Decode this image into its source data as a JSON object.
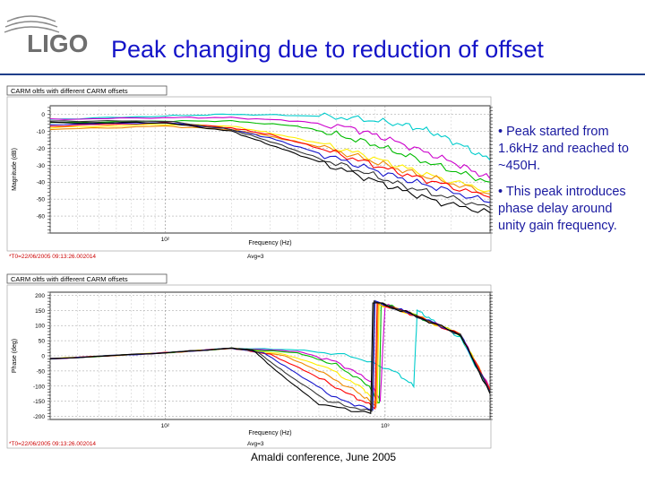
{
  "logo": {
    "text": "LIGO"
  },
  "slide": {
    "title": "Peak changing due to reduction of offset",
    "bullets": [
      "• Peak started from 1.6kHz and reached to ~450H.",
      "• This peak introduces phase delay around unity gain frequency."
    ],
    "footer": "Amaldi conference, June 2005"
  },
  "colors": {
    "title": "#1414c8",
    "bullets": "#1a1aa0",
    "stamp": "#cc0000"
  },
  "chart_data": [
    {
      "type": "line",
      "title": "CARM oltfs with different CARM offsets",
      "ylabel": "Magnitude (dB)",
      "xlabel": "Frequency (Hz)",
      "x_scale": "log",
      "xlim": [
        30,
        3000
      ],
      "ylim": [
        -70,
        5
      ],
      "yticks": [
        0,
        -10,
        -20,
        -30,
        -40,
        -50,
        -60
      ],
      "xtick_labels": [
        {
          "value": 100,
          "text": "10²"
        }
      ],
      "timestamp": "*T0=22/06/2005 09:13:26.002014",
      "avg": "Avg=3",
      "series": [
        {
          "color": "#00cccc",
          "x": [
            30,
            100,
            200,
            500,
            800,
            1200,
            1600,
            2200,
            3000
          ],
          "y": [
            -3,
            -1,
            0,
            -1,
            -3,
            -6,
            -10,
            -18,
            -27
          ]
        },
        {
          "color": "#cc00cc",
          "x": [
            30,
            100,
            200,
            400,
            700,
            1000,
            1500,
            2200,
            3000
          ],
          "y": [
            -3,
            -2,
            -2,
            -4,
            -8,
            -14,
            -22,
            -30,
            -38
          ]
        },
        {
          "color": "#00bb00",
          "x": [
            30,
            100,
            200,
            400,
            600,
            900,
            1300,
            2000,
            3000
          ],
          "y": [
            -5,
            -4,
            -4,
            -7,
            -12,
            -18,
            -25,
            -33,
            -40
          ]
        },
        {
          "color": "#ffee00",
          "x": [
            30,
            100,
            200,
            300,
            500,
            800,
            1200,
            1800,
            3000
          ],
          "y": [
            -8,
            -6,
            -7,
            -11,
            -17,
            -24,
            -31,
            -38,
            -45
          ]
        },
        {
          "color": "#ee8800",
          "x": [
            30,
            100,
            200,
            300,
            500,
            800,
            1200,
            1800,
            3000
          ],
          "y": [
            -9,
            -7,
            -9,
            -13,
            -19,
            -26,
            -33,
            -39,
            -47
          ]
        },
        {
          "color": "#ff0000",
          "x": [
            30,
            100,
            200,
            300,
            500,
            800,
            1200,
            1800,
            3000
          ],
          "y": [
            -7,
            -5,
            -8,
            -12,
            -20,
            -28,
            -35,
            -41,
            -49
          ]
        },
        {
          "color": "#1515cc",
          "x": [
            30,
            100,
            200,
            300,
            500,
            800,
            1200,
            1800,
            3000
          ],
          "y": [
            -6,
            -5,
            -9,
            -14,
            -23,
            -31,
            -38,
            -44,
            -52
          ]
        },
        {
          "color": "#333333",
          "x": [
            30,
            100,
            200,
            300,
            500,
            800,
            1200,
            1800,
            3000
          ],
          "y": [
            -4,
            -4,
            -9,
            -16,
            -26,
            -34,
            -42,
            -48,
            -55
          ]
        },
        {
          "color": "#000000",
          "x": [
            30,
            100,
            200,
            300,
            500,
            800,
            1200,
            1800,
            3000
          ],
          "y": [
            -5,
            -5,
            -10,
            -18,
            -28,
            -37,
            -45,
            -52,
            -58
          ]
        }
      ]
    },
    {
      "type": "line",
      "title": "CARM oltfs with different CARM offsets",
      "ylabel": "Phase (deg)",
      "xlabel": "Frequency (Hz)",
      "x_scale": "log",
      "xlim": [
        30,
        3000
      ],
      "ylim": [
        -210,
        210
      ],
      "yticks": [
        200,
        150,
        100,
        50,
        0,
        -50,
        -100,
        -150,
        -200
      ],
      "xtick_labels": [
        {
          "value": 100,
          "text": "10²"
        },
        {
          "value": 1000,
          "text": "10³"
        }
      ],
      "timestamp": "*T0=22/06/2005 09:13:26.002014",
      "avg": "Avg=3",
      "series": [
        {
          "color": "#00cccc",
          "x": [
            30,
            100,
            200,
            400,
            700,
            1100,
            1350,
            1400,
            1700,
            2200,
            3000
          ],
          "y": [
            -10,
            10,
            25,
            20,
            0,
            -50,
            -100,
            150,
            110,
            60,
            -120
          ]
        },
        {
          "color": "#cc00cc",
          "x": [
            30,
            100,
            200,
            400,
            600,
            850,
            950,
            1000,
            1300,
            2200,
            3000
          ],
          "y": [
            -10,
            10,
            25,
            15,
            -20,
            -80,
            -150,
            170,
            140,
            70,
            -110
          ]
        },
        {
          "color": "#00bb00",
          "x": [
            30,
            100,
            200,
            400,
            600,
            850,
            940,
            960,
            1300,
            2200,
            3000
          ],
          "y": [
            -10,
            10,
            25,
            10,
            -30,
            -100,
            -160,
            175,
            140,
            70,
            -115
          ]
        },
        {
          "color": "#ffee00",
          "x": [
            30,
            100,
            200,
            350,
            550,
            800,
            920,
            940,
            1300,
            2200,
            3000
          ],
          "y": [
            -10,
            10,
            25,
            5,
            -40,
            -110,
            -160,
            170,
            140,
            70,
            -110
          ]
        },
        {
          "color": "#ee8800",
          "x": [
            30,
            100,
            200,
            350,
            500,
            750,
            910,
            930,
            1300,
            2200,
            3000
          ],
          "y": [
            -10,
            10,
            25,
            0,
            -50,
            -120,
            -165,
            172,
            140,
            70,
            -108
          ]
        },
        {
          "color": "#ff0000",
          "x": [
            30,
            100,
            200,
            300,
            450,
            700,
            900,
            920,
            1300,
            2200,
            3000
          ],
          "y": [
            -10,
            10,
            25,
            5,
            -55,
            -130,
            -170,
            175,
            140,
            70,
            -112
          ]
        },
        {
          "color": "#1515cc",
          "x": [
            30,
            100,
            200,
            280,
            400,
            600,
            880,
            900,
            1300,
            2200,
            3000
          ],
          "y": [
            -10,
            10,
            25,
            10,
            -60,
            -140,
            -180,
            178,
            140,
            70,
            -118
          ]
        },
        {
          "color": "#333333",
          "x": [
            30,
            100,
            200,
            260,
            350,
            550,
            870,
            890,
            1300,
            2200,
            3000
          ],
          "y": [
            -10,
            10,
            25,
            15,
            -55,
            -150,
            -185,
            180,
            140,
            70,
            -120
          ]
        },
        {
          "color": "#000000",
          "x": [
            30,
            100,
            200,
            250,
            320,
            500,
            860,
            880,
            1300,
            2200,
            3000
          ],
          "y": [
            -10,
            10,
            25,
            20,
            -50,
            -160,
            -190,
            180,
            140,
            70,
            -125
          ]
        }
      ]
    }
  ]
}
